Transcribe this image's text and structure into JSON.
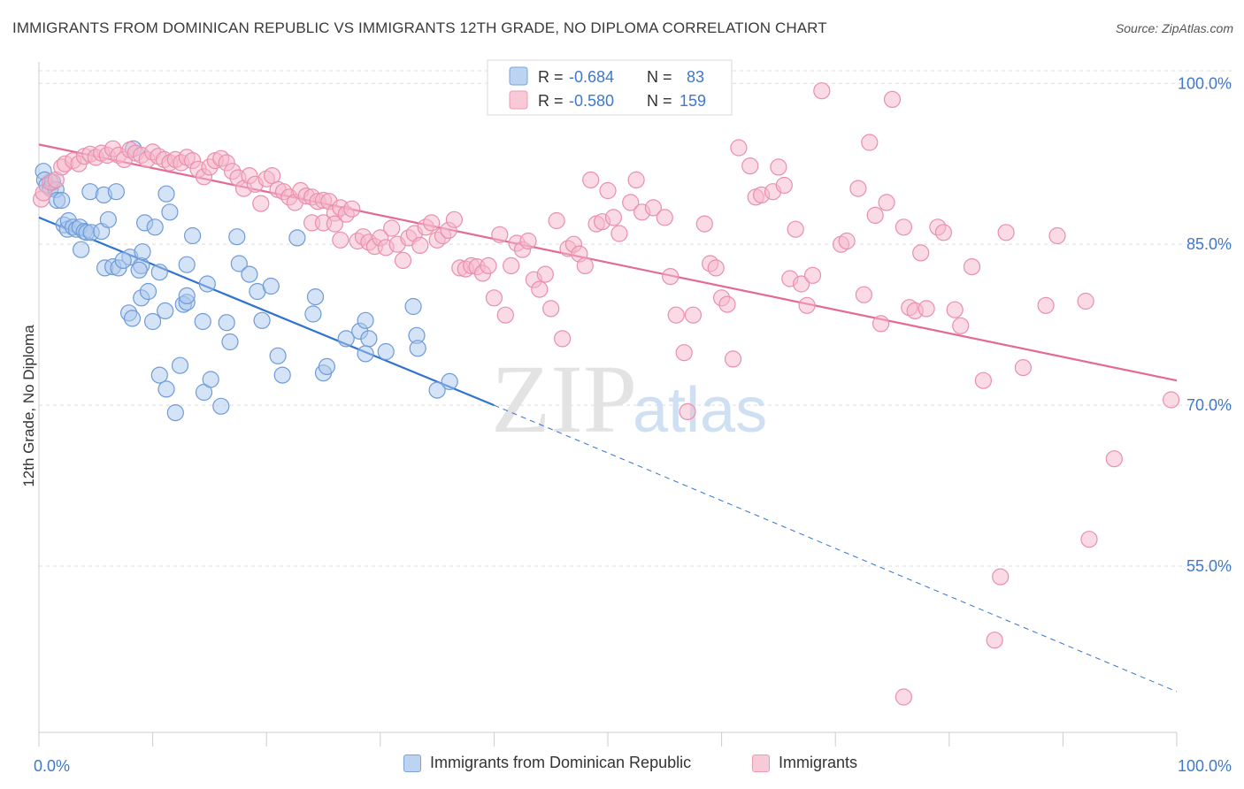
{
  "header": {
    "title": "IMMIGRANTS FROM DOMINICAN REPUBLIC VS IMMIGRANTS 12TH GRADE, NO DIPLOMA CORRELATION CHART",
    "source": "Source: ZipAtlas.com"
  },
  "watermark": {
    "zip": "ZIP",
    "atlas": "atlas"
  },
  "legend_top": {
    "rows": [
      {
        "r_label": "R = ",
        "r_value": "-0.684",
        "n_label": "N = ",
        "n_value": "83"
      },
      {
        "r_label": "R = ",
        "r_value": "-0.580",
        "n_label": "N = ",
        "n_value": "159"
      }
    ]
  },
  "colors": {
    "blue_fill": "#aac8ee",
    "blue_stroke": "#6f9bd8",
    "blue_line": "#2f74d0",
    "pink_fill": "#f6b8cb",
    "pink_stroke": "#ea8fab",
    "pink_line": "#e46a93",
    "value_text": "#3f78cc",
    "grid": "#dddddd"
  },
  "chart_data": {
    "type": "scatter",
    "title": "IMMIGRANTS FROM DOMINICAN REPUBLIC VS IMMIGRANTS 12TH GRADE, NO DIPLOMA CORRELATION CHART",
    "xlabel": "",
    "ylabel": "12th Grade, No Diploma",
    "xlim": [
      0,
      100
    ],
    "ylim": [
      39.5,
      102
    ],
    "x_tick_labels": [
      "0.0%",
      "100.0%"
    ],
    "y_ticks": [
      100,
      85,
      70,
      55
    ],
    "y_tick_labels": [
      "100.0%",
      "85.0%",
      "70.0%",
      "55.0%"
    ],
    "legend_position": "bottom-center",
    "grid": true,
    "series": [
      {
        "name": "Immigrants from Dominican Republic",
        "r": -0.684,
        "n": 83,
        "trend": {
          "x0": 0,
          "y0": 87.5,
          "x1": 40,
          "y1": 70.0,
          "dashed_to": [
            100,
            43.3
          ]
        },
        "points": [
          [
            0.4,
            91.8
          ],
          [
            0.5,
            91.0
          ],
          [
            0.7,
            90.5
          ],
          [
            1.0,
            90.2
          ],
          [
            1.2,
            90.8
          ],
          [
            1.5,
            90.1
          ],
          [
            1.6,
            89.1
          ],
          [
            2.0,
            89.1
          ],
          [
            2.2,
            86.8
          ],
          [
            2.5,
            86.4
          ],
          [
            2.6,
            87.2
          ],
          [
            3.0,
            86.6
          ],
          [
            3.3,
            86.4
          ],
          [
            3.6,
            86.6
          ],
          [
            4.0,
            86.2
          ],
          [
            4.2,
            86.1
          ],
          [
            4.6,
            86.1
          ],
          [
            5.5,
            86.2
          ],
          [
            3.7,
            84.5
          ],
          [
            4.5,
            89.9
          ],
          [
            5.7,
            89.6
          ],
          [
            6.1,
            87.3
          ],
          [
            6.8,
            89.9
          ],
          [
            8.0,
            83.8
          ],
          [
            5.8,
            82.8
          ],
          [
            6.5,
            82.9
          ],
          [
            7.0,
            82.8
          ],
          [
            7.4,
            83.5
          ],
          [
            8.3,
            93.9
          ],
          [
            9.0,
            83.0
          ],
          [
            8.8,
            82.6
          ],
          [
            9.1,
            84.3
          ],
          [
            9.3,
            87.0
          ],
          [
            10.2,
            86.6
          ],
          [
            10.6,
            82.4
          ],
          [
            11.2,
            89.7
          ],
          [
            11.5,
            88.0
          ],
          [
            13.5,
            85.8
          ],
          [
            13.0,
            83.1
          ],
          [
            14.8,
            81.3
          ],
          [
            17.4,
            85.7
          ],
          [
            17.6,
            83.2
          ],
          [
            18.5,
            82.2
          ],
          [
            19.2,
            80.6
          ],
          [
            20.4,
            81.1
          ],
          [
            22.7,
            85.6
          ],
          [
            9.0,
            80.0
          ],
          [
            9.6,
            80.6
          ],
          [
            7.9,
            78.6
          ],
          [
            8.2,
            78.1
          ],
          [
            10.0,
            77.8
          ],
          [
            11.1,
            78.8
          ],
          [
            12.7,
            79.4
          ],
          [
            13.0,
            79.6
          ],
          [
            13.0,
            80.2
          ],
          [
            14.4,
            77.8
          ],
          [
            16.5,
            77.7
          ],
          [
            16.8,
            75.9
          ],
          [
            19.6,
            77.9
          ],
          [
            21.0,
            74.6
          ],
          [
            21.4,
            72.8
          ],
          [
            24.1,
            78.5
          ],
          [
            24.3,
            80.1
          ],
          [
            27.0,
            76.2
          ],
          [
            28.2,
            76.9
          ],
          [
            28.7,
            77.9
          ],
          [
            29.0,
            76.2
          ],
          [
            28.7,
            74.8
          ],
          [
            30.5,
            75.0
          ],
          [
            32.9,
            79.2
          ],
          [
            33.2,
            76.5
          ],
          [
            33.3,
            75.3
          ],
          [
            10.6,
            72.8
          ],
          [
            11.2,
            71.5
          ],
          [
            12.0,
            69.3
          ],
          [
            12.4,
            73.7
          ],
          [
            14.5,
            71.2
          ],
          [
            15.1,
            72.4
          ],
          [
            16.0,
            69.9
          ],
          [
            25.0,
            73.0
          ],
          [
            25.3,
            73.6
          ],
          [
            35.0,
            71.4
          ],
          [
            36.1,
            72.2
          ]
        ]
      },
      {
        "name": "Immigrants",
        "r": -0.58,
        "n": 159,
        "trend": {
          "x0": 0,
          "y0": 94.3,
          "x1": 100,
          "y1": 72.3
        },
        "points": [
          [
            0.2,
            89.2
          ],
          [
            0.4,
            89.8
          ],
          [
            1.0,
            90.8
          ],
          [
            1.5,
            91.0
          ],
          [
            2.0,
            92.2
          ],
          [
            2.3,
            92.5
          ],
          [
            3.0,
            92.8
          ],
          [
            3.5,
            92.5
          ],
          [
            4.0,
            93.2
          ],
          [
            4.5,
            93.4
          ],
          [
            5.0,
            93.1
          ],
          [
            5.5,
            93.5
          ],
          [
            6.0,
            93.3
          ],
          [
            6.5,
            93.9
          ],
          [
            7.0,
            93.3
          ],
          [
            7.5,
            92.9
          ],
          [
            8.0,
            93.8
          ],
          [
            8.5,
            93.5
          ],
          [
            9.0,
            93.3
          ],
          [
            9.5,
            92.9
          ],
          [
            10.0,
            93.6
          ],
          [
            10.5,
            93.2
          ],
          [
            11.0,
            92.9
          ],
          [
            11.5,
            92.6
          ],
          [
            12.0,
            92.9
          ],
          [
            12.5,
            92.6
          ],
          [
            13.0,
            93.1
          ],
          [
            13.5,
            92.8
          ],
          [
            14.0,
            92.0
          ],
          [
            14.5,
            91.3
          ],
          [
            15.0,
            92.2
          ],
          [
            15.5,
            92.8
          ],
          [
            16.0,
            93.0
          ],
          [
            16.5,
            92.6
          ],
          [
            17.0,
            91.8
          ],
          [
            17.5,
            91.2
          ],
          [
            18.0,
            90.2
          ],
          [
            18.5,
            91.4
          ],
          [
            19.0,
            90.6
          ],
          [
            19.5,
            88.8
          ],
          [
            20.0,
            91.1
          ],
          [
            20.5,
            91.4
          ],
          [
            21.0,
            90.1
          ],
          [
            21.5,
            89.9
          ],
          [
            22.0,
            89.4
          ],
          [
            22.5,
            88.9
          ],
          [
            23.0,
            90.0
          ],
          [
            23.5,
            89.5
          ],
          [
            24.0,
            89.4
          ],
          [
            24.5,
            89.0
          ],
          [
            25.0,
            89.1
          ],
          [
            25.5,
            89.0
          ],
          [
            26.0,
            87.9
          ],
          [
            26.5,
            88.4
          ],
          [
            24.0,
            87.0
          ],
          [
            25.0,
            87.0
          ],
          [
            26.0,
            86.9
          ],
          [
            26.5,
            85.4
          ],
          [
            27.0,
            87.8
          ],
          [
            27.5,
            88.3
          ],
          [
            28.0,
            85.3
          ],
          [
            28.5,
            85.7
          ],
          [
            29.0,
            85.2
          ],
          [
            29.5,
            84.8
          ],
          [
            30.0,
            85.6
          ],
          [
            30.5,
            84.7
          ],
          [
            31.0,
            86.5
          ],
          [
            31.5,
            85.0
          ],
          [
            32.0,
            83.5
          ],
          [
            32.5,
            85.6
          ],
          [
            33.0,
            86.0
          ],
          [
            33.5,
            84.9
          ],
          [
            34.0,
            86.6
          ],
          [
            34.5,
            87.0
          ],
          [
            35.0,
            85.4
          ],
          [
            35.5,
            85.8
          ],
          [
            36.0,
            86.3
          ],
          [
            36.5,
            87.3
          ],
          [
            37.0,
            82.8
          ],
          [
            37.5,
            82.7
          ],
          [
            38.0,
            83.0
          ],
          [
            38.5,
            82.9
          ],
          [
            39.0,
            82.3
          ],
          [
            39.5,
            83.0
          ],
          [
            40.0,
            80.0
          ],
          [
            40.5,
            85.9
          ],
          [
            41.0,
            78.4
          ],
          [
            41.5,
            83.0
          ],
          [
            42.0,
            85.1
          ],
          [
            42.5,
            84.5
          ],
          [
            43.0,
            85.3
          ],
          [
            43.5,
            81.7
          ],
          [
            44.0,
            80.8
          ],
          [
            44.5,
            82.2
          ],
          [
            45.0,
            79.0
          ],
          [
            45.5,
            87.2
          ],
          [
            46.0,
            76.2
          ],
          [
            46.5,
            84.6
          ],
          [
            47.0,
            85.0
          ],
          [
            47.5,
            84.1
          ],
          [
            48.0,
            83.0
          ],
          [
            48.5,
            91.0
          ],
          [
            49.0,
            86.9
          ],
          [
            49.5,
            87.1
          ],
          [
            50.0,
            90.0
          ],
          [
            50.5,
            87.5
          ],
          [
            51.0,
            86.0
          ],
          [
            52.0,
            88.9
          ],
          [
            52.5,
            91.0
          ],
          [
            53.0,
            88.0
          ],
          [
            54.0,
            88.4
          ],
          [
            55.0,
            87.5
          ],
          [
            55.5,
            82.0
          ],
          [
            56.0,
            78.4
          ],
          [
            56.7,
            74.9
          ],
          [
            57.0,
            69.4
          ],
          [
            57.5,
            78.4
          ],
          [
            58.5,
            86.9
          ],
          [
            59.0,
            83.2
          ],
          [
            59.5,
            82.8
          ],
          [
            60.0,
            80.0
          ],
          [
            60.5,
            79.4
          ],
          [
            61.0,
            74.3
          ],
          [
            61.5,
            94.0
          ],
          [
            62.5,
            92.3
          ],
          [
            63.0,
            89.4
          ],
          [
            63.5,
            89.6
          ],
          [
            64.5,
            89.9
          ],
          [
            65.0,
            92.2
          ],
          [
            65.5,
            90.5
          ],
          [
            66.0,
            81.8
          ],
          [
            66.5,
            86.4
          ],
          [
            67.0,
            81.3
          ],
          [
            67.5,
            79.3
          ],
          [
            68.0,
            82.1
          ],
          [
            68.8,
            99.3
          ],
          [
            70.5,
            85.0
          ],
          [
            71.0,
            85.3
          ],
          [
            72.0,
            90.2
          ],
          [
            72.5,
            80.3
          ],
          [
            73.0,
            94.5
          ],
          [
            73.5,
            87.7
          ],
          [
            74.0,
            77.6
          ],
          [
            74.5,
            88.9
          ],
          [
            75.0,
            98.5
          ],
          [
            76.0,
            86.6
          ],
          [
            76.5,
            79.1
          ],
          [
            77.0,
            78.8
          ],
          [
            77.5,
            84.2
          ],
          [
            78.0,
            79.0
          ],
          [
            79.0,
            86.6
          ],
          [
            79.5,
            86.1
          ],
          [
            80.5,
            78.9
          ],
          [
            81.0,
            77.4
          ],
          [
            82.0,
            82.9
          ],
          [
            83.0,
            72.3
          ],
          [
            85.0,
            86.1
          ],
          [
            86.5,
            73.5
          ],
          [
            88.5,
            79.3
          ],
          [
            89.5,
            85.8
          ],
          [
            92.0,
            79.7
          ],
          [
            92.3,
            57.5
          ],
          [
            94.5,
            65.0
          ],
          [
            99.5,
            70.5
          ],
          [
            84.0,
            48.1
          ],
          [
            84.5,
            54.0
          ],
          [
            76.0,
            42.8
          ]
        ]
      }
    ]
  },
  "legend_bottom": [
    {
      "label": "Immigrants from Dominican Republic"
    },
    {
      "label": "Immigrants"
    }
  ]
}
